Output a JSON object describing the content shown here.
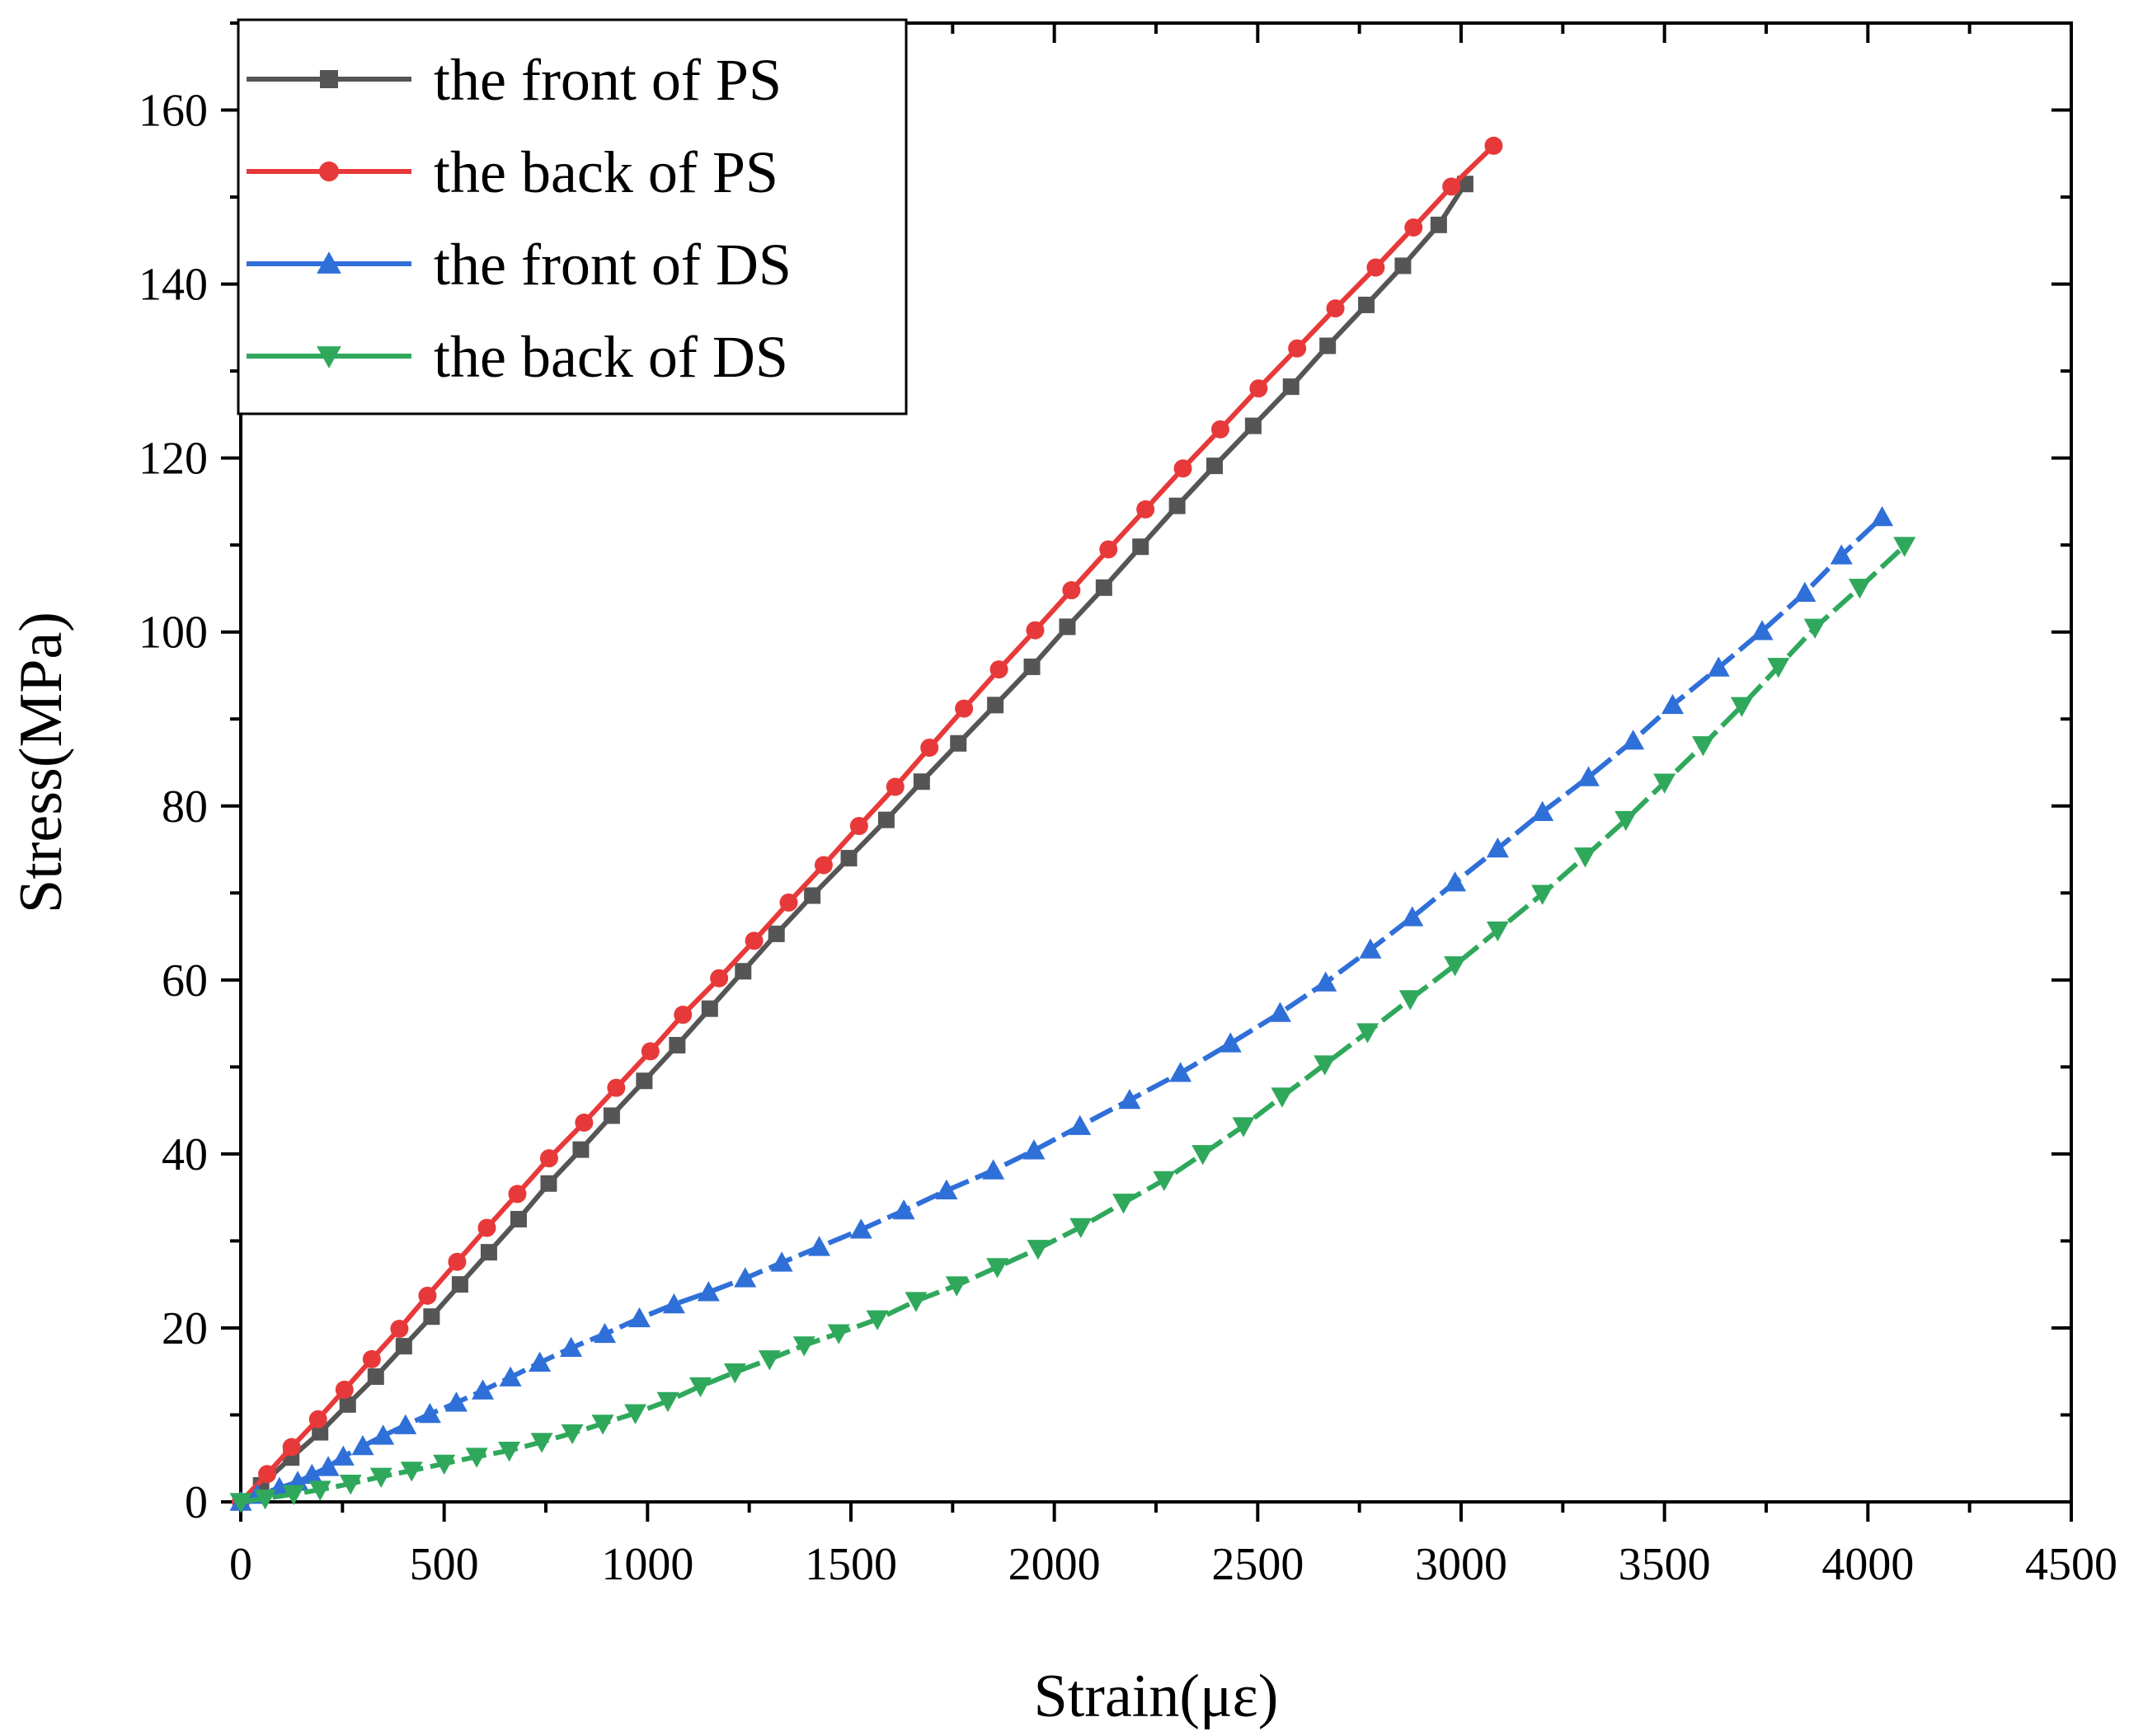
{
  "chart_data": {
    "type": "line",
    "title": "",
    "xlabel": "Strain(με)",
    "ylabel": "Stress(MPa)",
    "xlim": [
      0,
      4500
    ],
    "ylim": [
      0,
      170
    ],
    "xticks": [
      0,
      500,
      1000,
      1500,
      2000,
      2500,
      3000,
      3500,
      4000,
      4500
    ],
    "yticks": [
      0,
      20,
      40,
      60,
      80,
      100,
      120,
      140,
      160
    ],
    "grid": false,
    "legend_position": "top-left",
    "series": [
      {
        "name": "the front of PS",
        "color": "#555555",
        "marker": "square",
        "dash": "solid",
        "points": [
          [
            0,
            0
          ],
          [
            50,
            1.9
          ],
          [
            124,
            5.1
          ],
          [
            195,
            8.0
          ],
          [
            263,
            11.2
          ],
          [
            332,
            14.4
          ],
          [
            401,
            17.9
          ],
          [
            469,
            21.3
          ],
          [
            539,
            25.0
          ],
          [
            610,
            28.7
          ],
          [
            683,
            32.5
          ],
          [
            757,
            36.6
          ],
          [
            836,
            40.5
          ],
          [
            912,
            44.4
          ],
          [
            992,
            48.4
          ],
          [
            1073,
            52.5
          ],
          [
            1153,
            56.7
          ],
          [
            1235,
            61.0
          ],
          [
            1317,
            65.3
          ],
          [
            1405,
            69.7
          ],
          [
            1495,
            74.0
          ],
          [
            1587,
            78.4
          ],
          [
            1674,
            82.8
          ],
          [
            1764,
            87.2
          ],
          [
            1855,
            91.6
          ],
          [
            1945,
            96.0
          ],
          [
            2032,
            100.6
          ],
          [
            2122,
            105.1
          ],
          [
            2212,
            109.8
          ],
          [
            2302,
            114.5
          ],
          [
            2394,
            119.1
          ],
          [
            2489,
            123.7
          ],
          [
            2582,
            128.2
          ],
          [
            2672,
            132.9
          ],
          [
            2767,
            137.6
          ],
          [
            2857,
            142.1
          ],
          [
            2945,
            146.8
          ],
          [
            3010,
            151.5
          ]
        ]
      },
      {
        "name": "the back of PS",
        "color": "#e8393a",
        "marker": "circle",
        "dash": "solid",
        "points": [
          [
            0,
            0
          ],
          [
            65,
            3.2
          ],
          [
            125,
            6.3
          ],
          [
            190,
            9.5
          ],
          [
            255,
            12.9
          ],
          [
            322,
            16.4
          ],
          [
            390,
            19.9
          ],
          [
            459,
            23.7
          ],
          [
            532,
            27.6
          ],
          [
            605,
            31.5
          ],
          [
            680,
            35.4
          ],
          [
            758,
            39.5
          ],
          [
            844,
            43.6
          ],
          [
            923,
            47.6
          ],
          [
            1007,
            51.8
          ],
          [
            1087,
            56.0
          ],
          [
            1176,
            60.2
          ],
          [
            1262,
            64.5
          ],
          [
            1347,
            68.9
          ],
          [
            1433,
            73.2
          ],
          [
            1520,
            77.7
          ],
          [
            1609,
            82.2
          ],
          [
            1693,
            86.7
          ],
          [
            1778,
            91.2
          ],
          [
            1864,
            95.7
          ],
          [
            1953,
            100.2
          ],
          [
            2042,
            104.8
          ],
          [
            2133,
            109.5
          ],
          [
            2224,
            114.1
          ],
          [
            2316,
            118.8
          ],
          [
            2408,
            123.3
          ],
          [
            2502,
            128.0
          ],
          [
            2597,
            132.6
          ],
          [
            2691,
            137.2
          ],
          [
            2790,
            141.9
          ],
          [
            2883,
            146.5
          ],
          [
            2976,
            151.2
          ],
          [
            3080,
            155.9
          ]
        ]
      },
      {
        "name": "the front of DS",
        "color": "#2f6fd8",
        "marker": "triangle-up",
        "dash": "dashed",
        "points": [
          [
            0,
            0
          ],
          [
            40,
            0.8
          ],
          [
            95,
            1.6
          ],
          [
            140,
            2.3
          ],
          [
            175,
            3.1
          ],
          [
            215,
            4.0
          ],
          [
            252,
            5.2
          ],
          [
            300,
            6.4
          ],
          [
            350,
            7.6
          ],
          [
            405,
            8.8
          ],
          [
            465,
            10.1
          ],
          [
            530,
            11.4
          ],
          [
            595,
            12.8
          ],
          [
            663,
            14.3
          ],
          [
            735,
            16.0
          ],
          [
            812,
            17.7
          ],
          [
            895,
            19.3
          ],
          [
            980,
            21.1
          ],
          [
            1065,
            22.7
          ],
          [
            1150,
            24.1
          ],
          [
            1240,
            25.7
          ],
          [
            1330,
            27.5
          ],
          [
            1422,
            29.3
          ],
          [
            1525,
            31.3
          ],
          [
            1630,
            33.5
          ],
          [
            1735,
            35.8
          ],
          [
            1850,
            38.1
          ],
          [
            1950,
            40.4
          ],
          [
            2063,
            43.2
          ],
          [
            2185,
            46.2
          ],
          [
            2310,
            49.3
          ],
          [
            2433,
            52.7
          ],
          [
            2555,
            56.2
          ],
          [
            2667,
            59.7
          ],
          [
            2777,
            63.5
          ],
          [
            2880,
            67.2
          ],
          [
            2985,
            71.2
          ],
          [
            3090,
            75.1
          ],
          [
            3200,
            79.3
          ],
          [
            3313,
            83.3
          ],
          [
            3423,
            87.5
          ],
          [
            3520,
            91.6
          ],
          [
            3633,
            95.9
          ],
          [
            3740,
            100.1
          ],
          [
            3845,
            104.5
          ],
          [
            3935,
            108.8
          ],
          [
            4035,
            113.2
          ]
        ]
      },
      {
        "name": "the back of DS",
        "color": "#2fa85c",
        "marker": "triangle-down",
        "dash": "dashed",
        "points": [
          [
            0,
            0
          ],
          [
            60,
            0.4
          ],
          [
            130,
            0.9
          ],
          [
            195,
            1.4
          ],
          [
            270,
            2.1
          ],
          [
            345,
            2.9
          ],
          [
            420,
            3.6
          ],
          [
            500,
            4.4
          ],
          [
            580,
            5.2
          ],
          [
            660,
            5.9
          ],
          [
            740,
            6.9
          ],
          [
            815,
            7.9
          ],
          [
            890,
            9.0
          ],
          [
            970,
            10.2
          ],
          [
            1050,
            11.6
          ],
          [
            1130,
            13.3
          ],
          [
            1215,
            14.9
          ],
          [
            1300,
            16.4
          ],
          [
            1385,
            18.0
          ],
          [
            1470,
            19.4
          ],
          [
            1565,
            21.0
          ],
          [
            1660,
            23.1
          ],
          [
            1760,
            24.9
          ],
          [
            1860,
            27.0
          ],
          [
            1960,
            29.1
          ],
          [
            2065,
            31.6
          ],
          [
            2170,
            34.4
          ],
          [
            2270,
            37.0
          ],
          [
            2365,
            40.0
          ],
          [
            2465,
            43.2
          ],
          [
            2560,
            46.6
          ],
          [
            2665,
            50.3
          ],
          [
            2770,
            54.0
          ],
          [
            2875,
            57.8
          ],
          [
            2985,
            61.7
          ],
          [
            3090,
            65.7
          ],
          [
            3200,
            69.9
          ],
          [
            3305,
            74.2
          ],
          [
            3405,
            78.4
          ],
          [
            3500,
            82.7
          ],
          [
            3595,
            87.0
          ],
          [
            3690,
            91.5
          ],
          [
            3780,
            96.0
          ],
          [
            3870,
            100.5
          ],
          [
            3980,
            105.1
          ],
          [
            4090,
            109.9
          ]
        ]
      }
    ]
  }
}
